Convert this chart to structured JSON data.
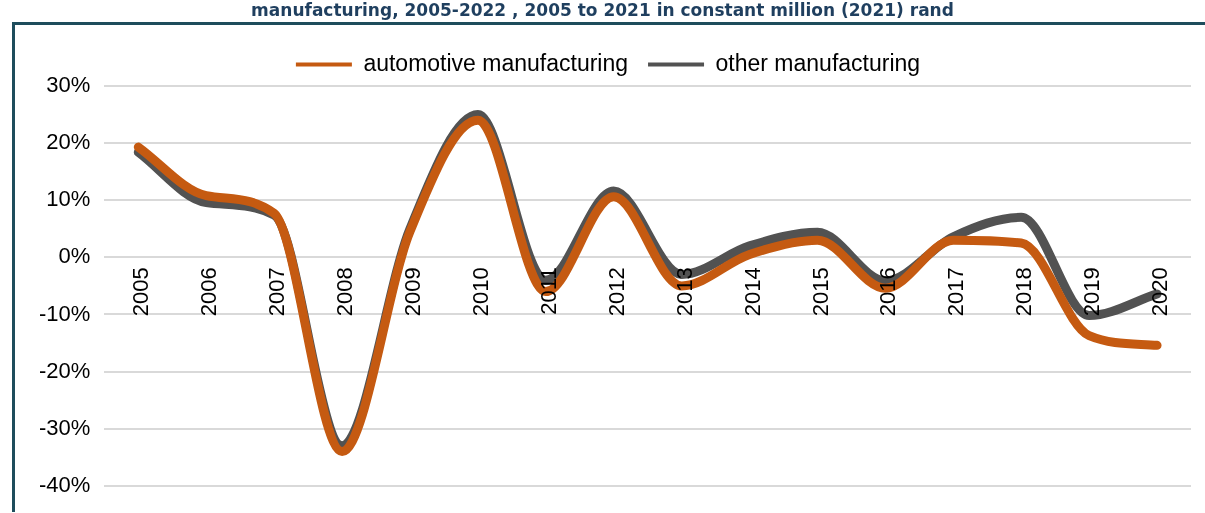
{
  "chart_data": {
    "type": "line",
    "title": "manufacturing, 2005-2022 , 2005 to 2021 in constant million (2021) rand",
    "categories": [
      "2005",
      "2006",
      "2007",
      "2008",
      "2009",
      "2010",
      "2011",
      "2012",
      "2013",
      "2014",
      "2015",
      "2016",
      "2017",
      "2018",
      "2019",
      "2020"
    ],
    "series": [
      {
        "name": "automotive manufacturing",
        "color": "#c55a11",
        "values": [
          19.3,
          10.8,
          7.7,
          -34,
          4.5,
          24,
          -6,
          10.6,
          -5,
          0.5,
          3,
          -5.4,
          3,
          2.5,
          -13.7,
          -15.4
        ]
      },
      {
        "name": "other manufacturing",
        "color": "#525252",
        "values": [
          18.4,
          9.6,
          7.4,
          -33,
          5,
          25,
          -4,
          11.6,
          -3,
          2,
          4.4,
          -4.1,
          3.6,
          7,
          -10.2,
          -6.4
        ]
      }
    ],
    "ylim": [
      -40,
      30
    ],
    "yticks": [
      {
        "value": -40,
        "label": "-40%"
      },
      {
        "value": -30,
        "label": "-30%"
      },
      {
        "value": -20,
        "label": "-20%"
      },
      {
        "value": -10,
        "label": "-10%"
      },
      {
        "value": 0,
        "label": "0%"
      },
      {
        "value": 10,
        "label": "10%"
      },
      {
        "value": 20,
        "label": "20%"
      },
      {
        "value": 30,
        "label": "30%"
      }
    ],
    "grid": "y",
    "legend": "top",
    "marker": "none",
    "line_style": "solid"
  }
}
